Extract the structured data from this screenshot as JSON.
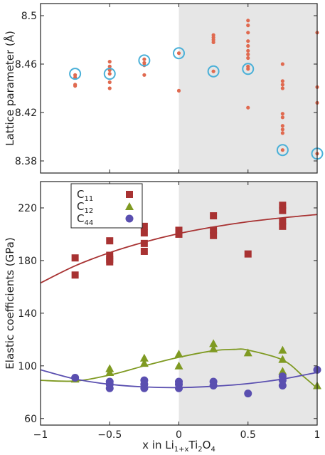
{
  "chart_data": [
    {
      "type": "scatter",
      "panel": "top",
      "title": "",
      "xlabel": "",
      "ylabel": "Lattice parameter (Å)",
      "xlim": [
        -1,
        1
      ],
      "ylim": [
        8.37,
        8.51
      ],
      "xticks": [
        "−1",
        "−0.5",
        "0",
        "0.5",
        "1"
      ],
      "xtick_values": [
        -1,
        -0.5,
        0,
        0.5,
        1
      ],
      "yticks": [
        "8.38",
        "8.42",
        "8.46",
        "8.5"
      ],
      "ytick_values": [
        8.38,
        8.42,
        8.46,
        8.5
      ],
      "shaded_region": [
        0,
        1
      ],
      "shade_color": "#e6e6e6",
      "point_color": "#e06a50",
      "circle_color": "#4ab0d8",
      "points": [
        {
          "x": -0.75,
          "y": 8.451
        },
        {
          "x": -0.75,
          "y": 8.449
        },
        {
          "x": -0.75,
          "y": 8.443
        },
        {
          "x": -0.75,
          "y": 8.442
        },
        {
          "x": -0.5,
          "y": 8.462
        },
        {
          "x": -0.5,
          "y": 8.458
        },
        {
          "x": -0.5,
          "y": 8.455
        },
        {
          "x": -0.5,
          "y": 8.452
        },
        {
          "x": -0.5,
          "y": 8.445
        },
        {
          "x": -0.5,
          "y": 8.44
        },
        {
          "x": -0.25,
          "y": 8.464
        },
        {
          "x": -0.25,
          "y": 8.461
        },
        {
          "x": -0.25,
          "y": 8.459
        },
        {
          "x": -0.25,
          "y": 8.451
        },
        {
          "x": 0,
          "y": 8.469
        },
        {
          "x": 0,
          "y": 8.438
        },
        {
          "x": 0.25,
          "y": 8.484
        },
        {
          "x": 0.25,
          "y": 8.482
        },
        {
          "x": 0.25,
          "y": 8.48
        },
        {
          "x": 0.25,
          "y": 8.478
        },
        {
          "x": 0.25,
          "y": 8.454
        },
        {
          "x": 0.5,
          "y": 8.496
        },
        {
          "x": 0.5,
          "y": 8.492
        },
        {
          "x": 0.5,
          "y": 8.486
        },
        {
          "x": 0.5,
          "y": 8.479
        },
        {
          "x": 0.5,
          "y": 8.475
        },
        {
          "x": 0.5,
          "y": 8.471
        },
        {
          "x": 0.5,
          "y": 8.468
        },
        {
          "x": 0.5,
          "y": 8.465
        },
        {
          "x": 0.5,
          "y": 8.458
        },
        {
          "x": 0.5,
          "y": 8.456
        },
        {
          "x": 0.5,
          "y": 8.424
        },
        {
          "x": 0.75,
          "y": 8.46
        },
        {
          "x": 0.75,
          "y": 8.446
        },
        {
          "x": 0.75,
          "y": 8.443
        },
        {
          "x": 0.75,
          "y": 8.44
        },
        {
          "x": 0.75,
          "y": 8.419
        },
        {
          "x": 0.75,
          "y": 8.416
        },
        {
          "x": 0.75,
          "y": 8.409
        },
        {
          "x": 0.75,
          "y": 8.406
        },
        {
          "x": 0.75,
          "y": 8.403
        },
        {
          "x": 0.75,
          "y": 8.389
        },
        {
          "x": 1,
          "y": 8.486
        },
        {
          "x": 1,
          "y": 8.441
        },
        {
          "x": 1,
          "y": 8.428
        },
        {
          "x": 1,
          "y": 8.386
        }
      ],
      "circled_points": [
        {
          "x": -0.75,
          "y": 8.452
        },
        {
          "x": -0.5,
          "y": 8.452
        },
        {
          "x": -0.25,
          "y": 8.463
        },
        {
          "x": 0,
          "y": 8.469
        },
        {
          "x": 0.25,
          "y": 8.454
        },
        {
          "x": 0.5,
          "y": 8.456
        },
        {
          "x": 0.75,
          "y": 8.389
        },
        {
          "x": 1,
          "y": 8.386
        }
      ]
    },
    {
      "type": "scatter",
      "panel": "bottom",
      "title": "",
      "xlabel": "x in Li1+xTi2O4",
      "xlabel_parts": {
        "pre": "x in Li",
        "sub1": "1+x",
        "mid1": "Ti",
        "sub2": "2",
        "mid2": "O",
        "sub3": "4"
      },
      "ylabel": "Elastic coefficients (GPa)",
      "xlim": [
        -1,
        1
      ],
      "ylim": [
        55,
        240
      ],
      "xticks": [
        "−1",
        "−0.5",
        "0",
        "0.5",
        "1"
      ],
      "xtick_values": [
        -1,
        -0.5,
        0,
        0.5,
        1
      ],
      "yticks": [
        "60",
        "100",
        "140",
        "180",
        "220"
      ],
      "ytick_values": [
        60,
        100,
        140,
        180,
        220
      ],
      "shaded_region": [
        0,
        1
      ],
      "shade_color": "#e6e6e6",
      "legend_position": "top-left",
      "legend": [
        {
          "label_main": "C",
          "label_sub": "11",
          "marker": "square",
          "color": "#a83232"
        },
        {
          "label_main": "C",
          "label_sub": "12",
          "marker": "triangle",
          "color": "#7f9a22"
        },
        {
          "label_main": "C",
          "label_sub": "44",
          "marker": "circle",
          "color": "#5a4fb0"
        }
      ],
      "series": [
        {
          "marker": "square",
          "color": "#a83232",
          "points": [
            {
              "x": -0.75,
              "y": 182
            },
            {
              "x": -0.75,
              "y": 169
            },
            {
              "x": -0.5,
              "y": 195
            },
            {
              "x": -0.5,
              "y": 184
            },
            {
              "x": -0.5,
              "y": 181
            },
            {
              "x": -0.5,
              "y": 179
            },
            {
              "x": -0.25,
              "y": 206
            },
            {
              "x": -0.25,
              "y": 201
            },
            {
              "x": -0.25,
              "y": 193
            },
            {
              "x": -0.25,
              "y": 187
            },
            {
              "x": 0,
              "y": 203
            },
            {
              "x": 0,
              "y": 200
            },
            {
              "x": 0.25,
              "y": 214
            },
            {
              "x": 0.25,
              "y": 203
            },
            {
              "x": 0.25,
              "y": 199
            },
            {
              "x": 0.5,
              "y": 185
            },
            {
              "x": 0.75,
              "y": 222
            },
            {
              "x": 0.75,
              "y": 218
            },
            {
              "x": 0.75,
              "y": 210
            },
            {
              "x": 0.75,
              "y": 206
            }
          ],
          "fit": [
            {
              "x": -1,
              "y": 163
            },
            {
              "x": -0.75,
              "y": 176
            },
            {
              "x": -0.5,
              "y": 186
            },
            {
              "x": -0.25,
              "y": 194
            },
            {
              "x": 0,
              "y": 200.5
            },
            {
              "x": 0.25,
              "y": 205.5
            },
            {
              "x": 0.5,
              "y": 209.5
            },
            {
              "x": 0.75,
              "y": 212.5
            },
            {
              "x": 1,
              "y": 215
            }
          ]
        },
        {
          "marker": "triangle",
          "color": "#7f9a22",
          "points": [
            {
              "x": -0.75,
              "y": 90
            },
            {
              "x": -0.5,
              "y": 98
            },
            {
              "x": -0.5,
              "y": 95
            },
            {
              "x": -0.25,
              "y": 106
            },
            {
              "x": -0.25,
              "y": 102
            },
            {
              "x": 0,
              "y": 109
            },
            {
              "x": 0,
              "y": 100
            },
            {
              "x": 0.25,
              "y": 117
            },
            {
              "x": 0.25,
              "y": 113
            },
            {
              "x": 0.5,
              "y": 110
            },
            {
              "x": 0.75,
              "y": 112
            },
            {
              "x": 0.75,
              "y": 105
            },
            {
              "x": 0.75,
              "y": 96
            },
            {
              "x": 1,
              "y": 85
            }
          ],
          "fit": [
            {
              "x": -1,
              "y": 89
            },
            {
              "x": -0.75,
              "y": 88.5
            },
            {
              "x": -0.5,
              "y": 93
            },
            {
              "x": -0.25,
              "y": 100
            },
            {
              "x": 0,
              "y": 106.5
            },
            {
              "x": 0.25,
              "y": 111.5
            },
            {
              "x": 0.4,
              "y": 112.5
            },
            {
              "x": 0.5,
              "y": 112
            },
            {
              "x": 0.75,
              "y": 104.5
            },
            {
              "x": 0.9,
              "y": 92
            },
            {
              "x": 1,
              "y": 83
            }
          ]
        },
        {
          "marker": "circle",
          "color": "#5a4fb0",
          "points": [
            {
              "x": -0.75,
              "y": 91
            },
            {
              "x": -0.5,
              "y": 88
            },
            {
              "x": -0.5,
              "y": 86
            },
            {
              "x": -0.5,
              "y": 83
            },
            {
              "x": -0.25,
              "y": 89
            },
            {
              "x": -0.25,
              "y": 86
            },
            {
              "x": -0.25,
              "y": 83
            },
            {
              "x": 0,
              "y": 88
            },
            {
              "x": 0,
              "y": 86
            },
            {
              "x": 0,
              "y": 83
            },
            {
              "x": 0.25,
              "y": 88
            },
            {
              "x": 0.25,
              "y": 85
            },
            {
              "x": 0.5,
              "y": 79
            },
            {
              "x": 0.75,
              "y": 92
            },
            {
              "x": 0.75,
              "y": 89
            },
            {
              "x": 0.75,
              "y": 85
            },
            {
              "x": 1,
              "y": 97
            }
          ],
          "fit": [
            {
              "x": -1,
              "y": 97
            },
            {
              "x": -0.75,
              "y": 90
            },
            {
              "x": -0.5,
              "y": 86
            },
            {
              "x": -0.25,
              "y": 84
            },
            {
              "x": 0,
              "y": 83.5
            },
            {
              "x": 0.25,
              "y": 84.5
            },
            {
              "x": 0.5,
              "y": 86.5
            },
            {
              "x": 0.75,
              "y": 90
            },
            {
              "x": 1,
              "y": 95
            }
          ]
        }
      ]
    }
  ]
}
